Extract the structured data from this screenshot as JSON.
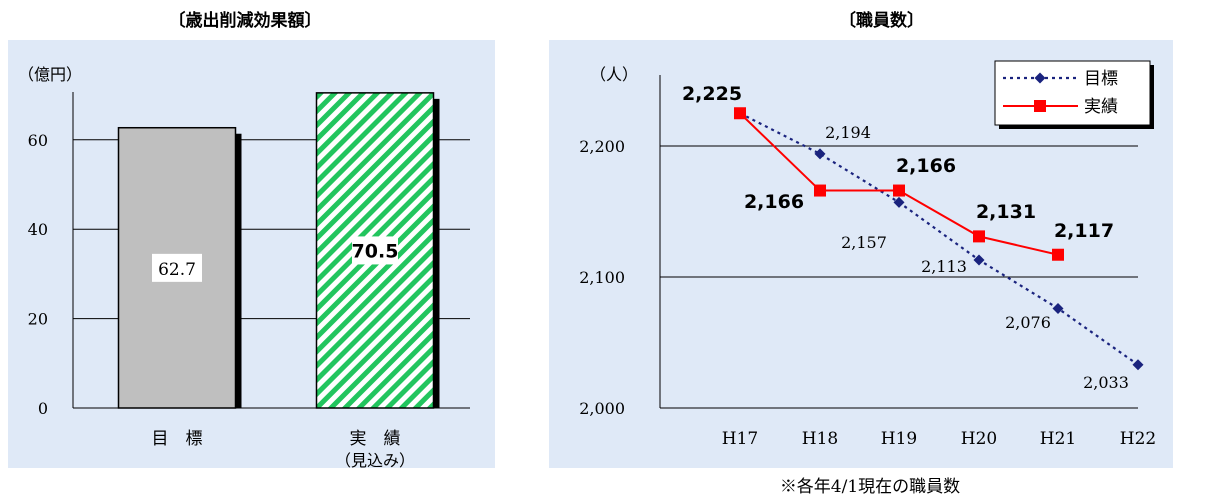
{
  "charts": {
    "left": {
      "title": "〔歳出削減効果額〕",
      "unit_label": "（億円）",
      "y_ticks": [
        "0",
        "20",
        "40",
        "60"
      ]
    },
    "right": {
      "title": "〔職員数〕",
      "unit_label": "（人）",
      "y_ticks": [
        "2,000",
        "2,100",
        "2,200"
      ],
      "note": "※各年4/1現在の職員数"
    }
  },
  "chart_data": [
    {
      "type": "bar",
      "title": "〔歳出削減効果額〕",
      "ylabel": "（億円）",
      "categories": [
        "目　標",
        "実　績"
      ],
      "category_sublabels": [
        "",
        "（見込み）"
      ],
      "values": [
        62.7,
        70.5
      ],
      "value_labels": [
        "62.7",
        "70.5"
      ],
      "ylim": [
        0,
        70
      ],
      "y_ticks": [
        0,
        20,
        40,
        60
      ],
      "grid": true,
      "colors": [
        "#bfbfbf",
        "#22c55e"
      ],
      "patterns": [
        "solid",
        "diagonal-stripes"
      ]
    },
    {
      "type": "line",
      "title": "〔職員数〕",
      "ylabel": "（人）",
      "x": [
        "H17",
        "H18",
        "H19",
        "H20",
        "H21",
        "H22"
      ],
      "ylim": [
        2000,
        2250
      ],
      "y_ticks": [
        2000,
        2100,
        2200
      ],
      "grid": true,
      "legend_position": "top-right",
      "series": [
        {
          "name": "目標",
          "values": [
            2225,
            2194,
            2157,
            2113,
            2076,
            2033
          ],
          "value_labels": [
            "",
            "2,194",
            "2,157",
            "2,113",
            "2,076",
            "2,033"
          ],
          "color": "#1a237e",
          "line_style": "dotted",
          "marker": "diamond"
        },
        {
          "name": "実績",
          "values": [
            2225,
            2166,
            2166,
            2131,
            2117,
            null
          ],
          "value_labels": [
            "2,225",
            "2,166",
            "2,166",
            "2,131",
            "2,117"
          ],
          "color": "#ff0000",
          "line_style": "solid",
          "marker": "square"
        }
      ]
    }
  ]
}
